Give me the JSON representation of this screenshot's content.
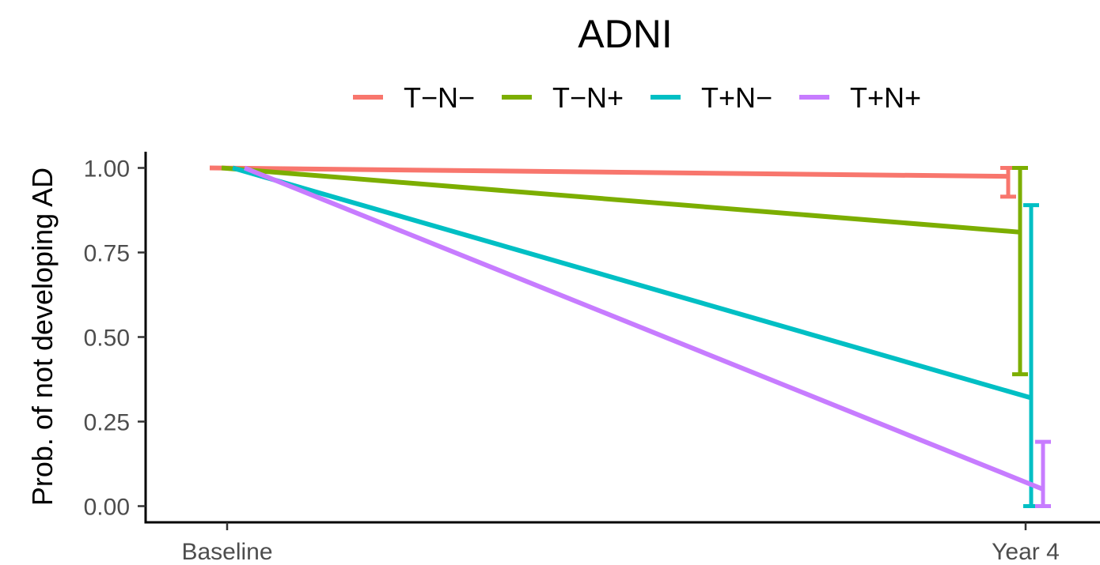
{
  "chart_data": {
    "type": "line",
    "title": "ADNI",
    "xlabel": "",
    "ylabel": "Prob. of not developing AD",
    "categories": [
      "Baseline",
      "Year 4"
    ],
    "yticks": [
      "0.00",
      "0.25",
      "0.50",
      "0.75",
      "1.00"
    ],
    "ylim": [
      -0.05,
      1.05
    ],
    "grid": false,
    "legend_position": "top",
    "series": [
      {
        "name": "T−N−",
        "color": "#F8766D",
        "values": [
          1.0,
          0.975
        ],
        "error": [
          0.915,
          1.0
        ]
      },
      {
        "name": "T−N+",
        "color": "#7CAE00",
        "values": [
          1.0,
          0.81
        ],
        "error": [
          0.39,
          1.0
        ]
      },
      {
        "name": "T+N−",
        "color": "#00BFC4",
        "values": [
          1.0,
          0.32
        ],
        "error": [
          0.0,
          0.89
        ]
      },
      {
        "name": "T+N+",
        "color": "#C77CFF",
        "values": [
          1.0,
          0.05
        ],
        "error": [
          0.0,
          0.19
        ]
      }
    ]
  }
}
